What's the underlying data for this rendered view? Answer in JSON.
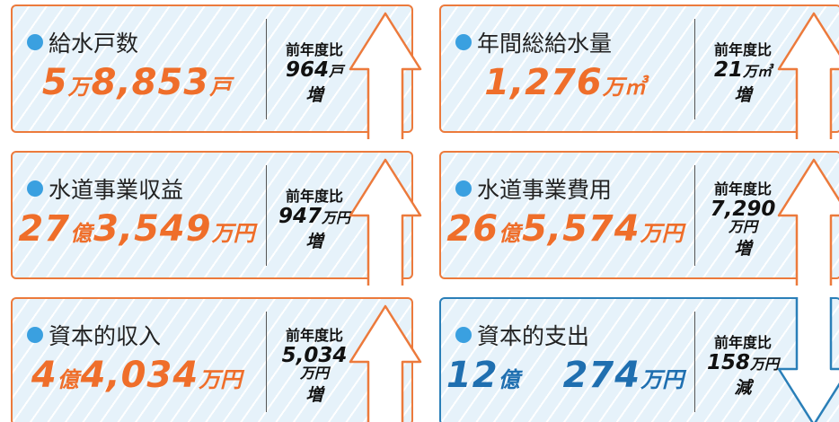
{
  "cards": [
    {
      "title": "給水戸数",
      "value": [
        "5",
        "万",
        "8,853",
        "戸"
      ],
      "compare_label": "前年度比",
      "change": [
        "964",
        "戸"
      ],
      "direction": "増"
    },
    {
      "title": "年間総給水量",
      "value": [
        "1,276",
        "万㎥"
      ],
      "compare_label": "前年度比",
      "change": [
        "21",
        "万㎥"
      ],
      "direction": "増"
    },
    {
      "title": "水道事業収益",
      "value": [
        "27",
        "億",
        "3,549",
        "万円"
      ],
      "compare_label": "前年度比",
      "change": [
        "947",
        "万円"
      ],
      "direction": "増"
    },
    {
      "title": "水道事業費用",
      "value": [
        "26",
        "億",
        "5,574",
        "万円"
      ],
      "compare_label": "前年度比",
      "change": [
        "7,290",
        "万円"
      ],
      "direction": "増"
    },
    {
      "title": "資本的収入",
      "value": [
        "4",
        "億",
        "4,034",
        "万円"
      ],
      "compare_label": "前年度比",
      "change": [
        "5,034",
        "万円"
      ],
      "direction": "増"
    },
    {
      "title": "資本的支出",
      "value": [
        "12",
        "億",
        "274",
        "万円"
      ],
      "compare_label": "前年度比",
      "change": [
        "158",
        "万円"
      ],
      "direction": "減"
    }
  ]
}
